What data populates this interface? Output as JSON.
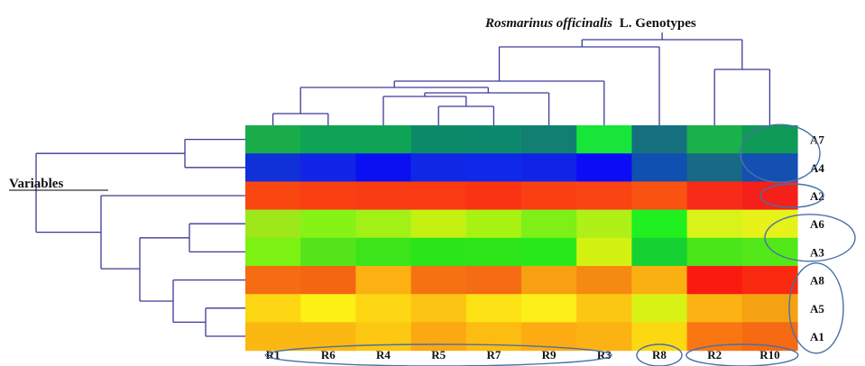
{
  "chart_data": {
    "type": "heatmap",
    "title_italic": "Rosmarinus officinalis",
    "title_rest": "L. Genotypes",
    "row_axis_label": "Variables",
    "columns": [
      "R1",
      "R6",
      "R4",
      "R5",
      "R7",
      "R9",
      "R3",
      "R8",
      "R2",
      "R10"
    ],
    "rows": [
      "A7",
      "A4",
      "A2",
      "A6",
      "A3",
      "A8",
      "A5",
      "A1"
    ],
    "cell_colors": [
      [
        "#1aac4a",
        "#0fa455",
        "#0fa455",
        "#0d8a68",
        "#0d8a6d",
        "#118072",
        "#17e53a",
        "#157080",
        "#1ab04a",
        "#0f9a58"
      ],
      [
        "#1030d8",
        "#1224e6",
        "#0a10f2",
        "#1028e6",
        "#1028e8",
        "#1024e8",
        "#0c0cf6",
        "#1050b0",
        "#176a86",
        "#1450b2"
      ],
      [
        "#fa4712",
        "#fa4012",
        "#fa3c12",
        "#fa3a12",
        "#fa3412",
        "#fa4012",
        "#fa4412",
        "#fa5210",
        "#f62c18",
        "#f5201a"
      ],
      [
        "#9ee81a",
        "#86f215",
        "#a2f015",
        "#c4f012",
        "#a8f212",
        "#7ef018",
        "#aef018",
        "#20f020",
        "#d8f21a",
        "#e6f21a"
      ],
      [
        "#7cf212",
        "#55e51a",
        "#3be51a",
        "#2ae51a",
        "#2ee51a",
        "#28ea1a",
        "#d4f212",
        "#15d232",
        "#4ae61a",
        "#52e81a"
      ],
      [
        "#f56c12",
        "#f56612",
        "#fcb012",
        "#f57212",
        "#f56c12",
        "#f7a012",
        "#f58a12",
        "#fbb012",
        "#fa1a10",
        "#fa2a10"
      ],
      [
        "#fcd612",
        "#fdf015",
        "#fcd612",
        "#fcc412",
        "#fce215",
        "#fdf01a",
        "#fcc712",
        "#d8f215",
        "#fcb212",
        "#f5a212"
      ],
      [
        "#fcb812",
        "#fcb812",
        "#fcc812",
        "#fca812",
        "#fcbc12",
        "#fcac12",
        "#fcb212",
        "#fcd812",
        "#f97612",
        "#f56a12"
      ]
    ]
  }
}
